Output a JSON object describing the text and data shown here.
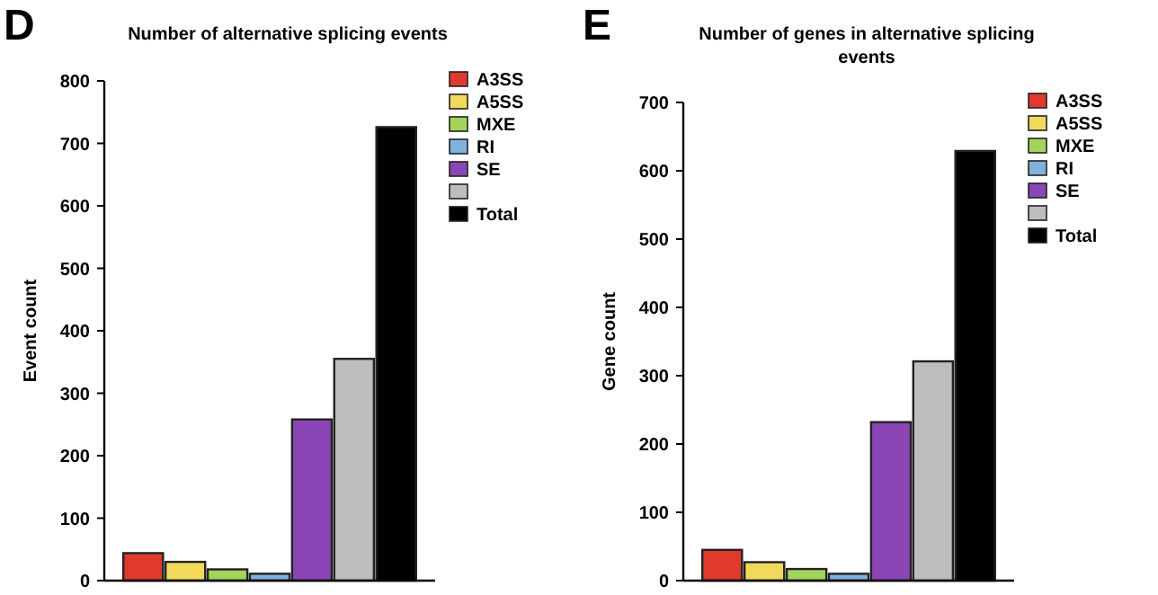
{
  "chart_data": [
    {
      "type": "bar",
      "title": "Number of alternative splicing events",
      "ylabel": "Event count",
      "annotations": [
        "D"
      ],
      "categories": [
        null
      ],
      "ylim": [
        0,
        800
      ],
      "yticks": [
        0,
        100,
        200,
        300,
        400,
        500,
        600,
        700,
        800
      ],
      "grid": false,
      "legend": "top right",
      "series": [
        {
          "name": "A3SS",
          "color": "#e03a2f",
          "values": [
            44
          ]
        },
        {
          "name": "A5SS",
          "color": "#f2d95c",
          "values": [
            30
          ]
        },
        {
          "name": "MXE",
          "color": "#a3d45a",
          "values": [
            18
          ]
        },
        {
          "name": "RI",
          "color": "#7fb2dc",
          "values": [
            11
          ]
        },
        {
          "name": "SE",
          "color": "#8a46b4",
          "values": [
            258
          ]
        },
        {
          "color": "#bdbdbd",
          "values": [
            355
          ]
        },
        {
          "name": "Total",
          "color": "#000000",
          "values": [
            726
          ]
        }
      ]
    },
    {
      "type": "bar",
      "title": "Number of genes in alternative splicing events",
      "ylabel": "Gene count",
      "annotations": [
        "E"
      ],
      "categories": [
        null
      ],
      "ylim": [
        0,
        700
      ],
      "yticks": [
        0,
        100,
        200,
        300,
        400,
        500,
        600,
        700
      ],
      "grid": false,
      "legend": "top right",
      "series": [
        {
          "name": "A3SS",
          "color": "#e03a2f",
          "values": [
            45
          ]
        },
        {
          "name": "A5SS",
          "color": "#f2d95c",
          "values": [
            27
          ]
        },
        {
          "name": "MXE",
          "color": "#a3d45a",
          "values": [
            17
          ]
        },
        {
          "name": "RI",
          "color": "#7fb2dc",
          "values": [
            10
          ]
        },
        {
          "name": "SE",
          "color": "#8a46b4",
          "values": [
            232
          ]
        },
        {
          "color": "#bdbdbd",
          "values": [
            321
          ]
        },
        {
          "name": "Total",
          "color": "#000000",
          "values": [
            629
          ]
        }
      ]
    }
  ]
}
